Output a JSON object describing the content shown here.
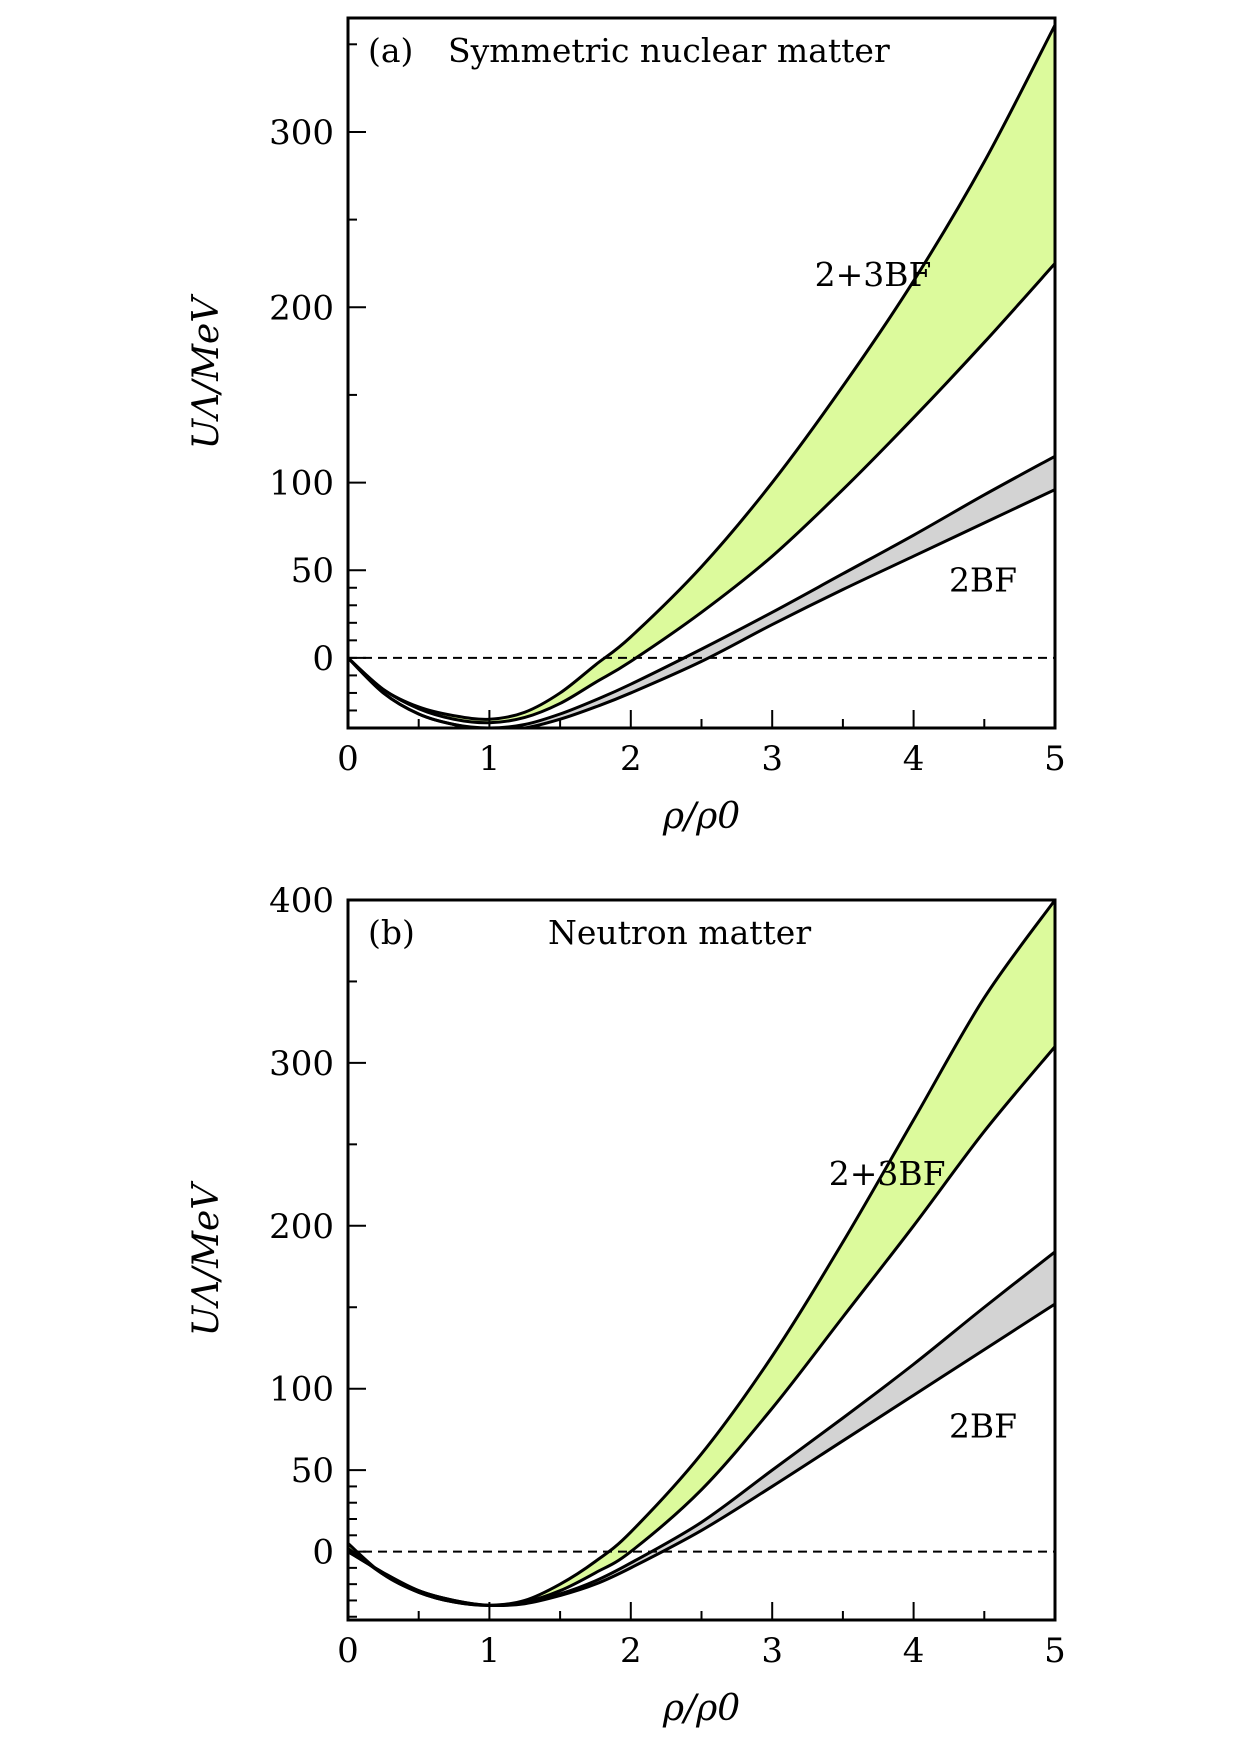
{
  "chart_data": [
    {
      "type": "area",
      "panel_label": "(a)",
      "title": "Symmetric nuclear matter",
      "xlabel": "ρ/ρ0",
      "ylabel": "UΛ/MeV",
      "xlim": [
        0,
        5
      ],
      "ylim": [
        -40,
        365
      ],
      "x_ticks": [
        0,
        1,
        2,
        3,
        4,
        5
      ],
      "y_ticks": [
        0,
        50,
        100,
        200,
        300
      ],
      "zero_line": true,
      "colors": {
        "band_3bf": "#dcfa9c",
        "band_2bf": "#d3d3d3",
        "line": "#000000"
      },
      "series": [
        {
          "name": "2+3BF",
          "label_at": [
            3.3,
            212
          ],
          "upper": {
            "x": [
              0,
              0.25,
              0.5,
              0.75,
              1,
              1.25,
              1.5,
              1.75,
              2,
              2.5,
              3,
              3.5,
              4,
              4.5,
              5
            ],
            "y": [
              0,
              -18,
              -28,
              -33,
              -35,
              -31,
              -20,
              -4,
              12,
              52,
              100,
              155,
              215,
              283,
              361
            ]
          },
          "lower": {
            "x": [
              0,
              0.25,
              0.5,
              0.75,
              1,
              1.25,
              1.5,
              1.75,
              2,
              2.5,
              3,
              3.5,
              4,
              4.5,
              5
            ],
            "y": [
              0,
              -18,
              -29,
              -35,
              -37,
              -34,
              -26,
              -14,
              -2,
              26,
              58,
              96,
              137,
              180,
              225
            ]
          }
        },
        {
          "name": "2BF",
          "label_at": [
            4.25,
            38
          ],
          "upper": {
            "x": [
              0,
              0.25,
              0.5,
              0.75,
              1,
              1.25,
              1.5,
              1.75,
              2,
              2.5,
              3,
              3.5,
              4,
              4.5,
              5
            ],
            "y": [
              0,
              -20,
              -32,
              -38,
              -40,
              -38,
              -32,
              -24,
              -15,
              5,
              26,
              48,
              70,
              93,
              115
            ]
          },
          "lower": {
            "x": [
              0,
              0.25,
              0.5,
              0.75,
              1,
              1.25,
              1.5,
              1.75,
              2,
              2.5,
              3,
              3.5,
              4,
              4.5,
              5
            ],
            "y": [
              0,
              -20,
              -32,
              -38,
              -41,
              -40,
              -35,
              -28,
              -20,
              -2,
              19,
              39,
              58,
              77,
              96
            ]
          }
        }
      ]
    },
    {
      "type": "area",
      "panel_label": "(b)",
      "title": "Neutron matter",
      "xlabel": "ρ/ρ0",
      "ylabel": "UΛ/MeV",
      "xlim": [
        0,
        5
      ],
      "ylim": [
        -42,
        400
      ],
      "x_ticks": [
        0,
        1,
        2,
        3,
        4,
        5
      ],
      "y_ticks": [
        0,
        50,
        100,
        200,
        300,
        400
      ],
      "zero_line": true,
      "colors": {
        "band_3bf": "#dcfa9c",
        "band_2bf": "#d3d3d3",
        "line": "#000000"
      },
      "series": [
        {
          "name": "2+3BF",
          "label_at": [
            3.4,
            225
          ],
          "upper": {
            "x": [
              0,
              0.25,
              0.5,
              0.75,
              1,
              1.25,
              1.5,
              1.75,
              2,
              2.5,
              3,
              3.5,
              4,
              4.5,
              5
            ],
            "y": [
              5,
              -14,
              -25,
              -31,
              -33,
              -30,
              -20,
              -6,
              12,
              60,
              120,
              190,
              265,
              340,
              400
            ]
          },
          "lower": {
            "x": [
              0,
              0.25,
              0.5,
              0.75,
              1,
              1.25,
              1.5,
              1.75,
              2,
              2.5,
              3,
              3.5,
              4,
              4.5,
              5
            ],
            "y": [
              0,
              -13,
              -24,
              -30,
              -33,
              -31,
              -24,
              -13,
              0,
              38,
              88,
              144,
              200,
              258,
              310
            ]
          }
        },
        {
          "name": "2BF",
          "label_at": [
            4.25,
            70
          ],
          "upper": {
            "x": [
              0,
              0.25,
              0.5,
              0.75,
              1,
              1.25,
              1.5,
              1.75,
              2,
              2.5,
              3,
              3.5,
              4,
              4.5,
              5
            ],
            "y": [
              2,
              -14,
              -25,
              -31,
              -33,
              -31,
              -26,
              -18,
              -7,
              18,
              50,
              82,
              115,
              150,
              184
            ]
          },
          "lower": {
            "x": [
              0,
              0.25,
              0.5,
              0.75,
              1,
              1.25,
              1.5,
              1.75,
              2,
              2.5,
              3,
              3.5,
              4,
              4.5,
              5
            ],
            "y": [
              0,
              -13,
              -24,
              -30,
              -33,
              -32,
              -27,
              -20,
              -10,
              13,
              40,
              68,
              96,
              124,
              152
            ]
          }
        }
      ]
    }
  ]
}
